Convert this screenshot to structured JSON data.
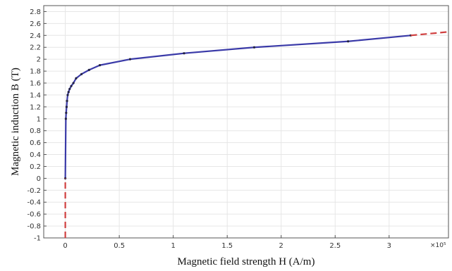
{
  "chart_data": {
    "type": "line",
    "xlabel": "Magnetic field strength H (A/m)",
    "ylabel": "Magnetic induction B (T)",
    "x_multiplier_label": "×10⁵",
    "xlim": [
      -0.2,
      3.55
    ],
    "ylim": [
      -1,
      2.9
    ],
    "x_ticks": [
      0,
      0.5,
      1,
      1.5,
      2,
      2.5,
      3
    ],
    "x_tick_labels": [
      "0",
      "0.5",
      "1",
      "1.5",
      "2",
      "2.5",
      "3"
    ],
    "y_ticks": [
      -1,
      -0.8,
      -0.6,
      -0.4,
      -0.2,
      0,
      0.2,
      0.4,
      0.6,
      0.8,
      1,
      1.2,
      1.4,
      1.6,
      1.8,
      2,
      2.2,
      2.4,
      2.6,
      2.8
    ],
    "y_tick_labels": [
      "-1",
      "-0.8",
      "-0.6",
      "-0.4",
      "-0.2",
      "0",
      "0.2",
      "0.4",
      "0.6",
      "0.8",
      "1",
      "1.2",
      "1.4",
      "1.6",
      "1.8",
      "2",
      "2.2",
      "2.4",
      "2.6",
      "2.8"
    ],
    "grid": true,
    "series": [
      {
        "color": "#3a3aa8",
        "style": "solid-with-markers",
        "x": [
          0,
          0.005,
          0.008,
          0.012,
          0.016,
          0.022,
          0.03,
          0.04,
          0.055,
          0.075,
          0.1,
          0.15,
          0.22,
          0.32,
          0.6,
          1.1,
          1.75,
          2.62,
          3.2
        ],
        "y": [
          0,
          1.0,
          1.1,
          1.2,
          1.3,
          1.4,
          1.45,
          1.5,
          1.55,
          1.6,
          1.68,
          1.75,
          1.82,
          1.9,
          2.0,
          2.1,
          2.2,
          2.3,
          2.4
        ]
      },
      {
        "color": "#d04040",
        "style": "dashed",
        "x": [
          0,
          0,
          0
        ],
        "y": [
          -1,
          -0.5,
          0
        ]
      },
      {
        "color": "#d04040",
        "style": "dashed",
        "x": [
          3.2,
          3.35,
          3.55
        ],
        "y": [
          2.4,
          2.425,
          2.46
        ]
      }
    ]
  }
}
